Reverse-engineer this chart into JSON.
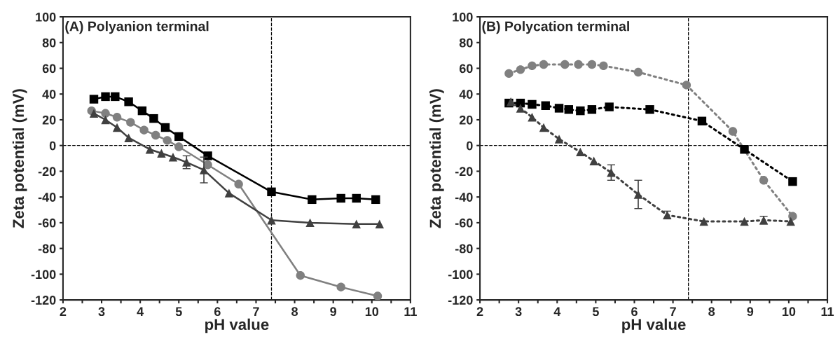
{
  "chart_data": [
    {
      "type": "line",
      "title": "(A) Polyanion terminal",
      "xlabel": "pH value",
      "ylabel": "Zeta potential (mV)",
      "xlim": [
        2,
        11
      ],
      "ylim": [
        -120,
        100
      ],
      "xticks": [
        2,
        {
          "value": 2.5,
          "label": null
        },
        3,
        {
          "value": 3.5,
          "label": null
        },
        4,
        {
          "value": 4.5,
          "label": null
        },
        5,
        {
          "value": 5.5,
          "label": null
        },
        6,
        {
          "value": 6.5,
          "label": null
        },
        7,
        {
          "value": 7.5,
          "label": null
        },
        8,
        {
          "value": 8.5,
          "label": null
        },
        9,
        {
          "value": 9.5,
          "label": null
        },
        10,
        {
          "value": 10.5,
          "label": null
        },
        11
      ],
      "yticks": [
        -120,
        -100,
        -80,
        -60,
        -40,
        -20,
        0,
        20,
        40,
        60,
        80,
        100
      ],
      "grid": false,
      "legend": false,
      "line_style": "solid",
      "ref_lines": [
        {
          "axis": "x",
          "value": 7.4,
          "line_style": "dashed",
          "color": "#000000"
        },
        {
          "axis": "y",
          "value": 0,
          "line_style": "dashed",
          "color": "#000000"
        }
      ],
      "series": [
        {
          "color": "#000000",
          "marker": "square",
          "x": [
            2.8,
            3.1,
            3.35,
            3.7,
            4.05,
            4.35,
            4.65,
            5.0,
            5.75,
            7.4,
            8.45,
            9.2,
            9.6,
            10.1
          ],
          "values": [
            36,
            38,
            38,
            34,
            27,
            21,
            14,
            7,
            -8,
            -36,
            -42,
            -41,
            -41,
            -42
          ]
        },
        {
          "color": "#808080",
          "marker": "circle",
          "x": [
            2.74,
            3.1,
            3.4,
            3.75,
            4.1,
            4.4,
            4.7,
            5.0,
            5.75,
            6.55,
            8.15,
            9.2,
            10.15
          ],
          "values": [
            27,
            25,
            22,
            18,
            12,
            8,
            4,
            -1,
            -15,
            -30,
            -101,
            -110,
            -117
          ]
        },
        {
          "color": "#404040",
          "marker": "triangle",
          "x": [
            2.8,
            3.1,
            3.4,
            3.7,
            4.25,
            4.55,
            4.85,
            5.2,
            5.65,
            6.3,
            7.4,
            8.4,
            9.6,
            10.2
          ],
          "values": [
            25,
            20,
            14,
            6,
            -3,
            -6,
            -9,
            -13,
            -19,
            -37,
            -58,
            -60,
            -61,
            -61
          ],
          "errors": [
            null,
            null,
            null,
            null,
            null,
            null,
            null,
            5,
            10,
            null,
            null,
            null,
            null,
            null
          ]
        }
      ]
    },
    {
      "type": "line",
      "title": "(B) Polycation terminal",
      "xlabel": "pH value",
      "ylabel": "Zeta potential (mV)",
      "xlim": [
        2,
        11
      ],
      "ylim": [
        -120,
        100
      ],
      "xticks": [
        2,
        {
          "value": 2.5,
          "label": null
        },
        3,
        {
          "value": 3.5,
          "label": null
        },
        4,
        {
          "value": 4.5,
          "label": null
        },
        5,
        {
          "value": 5.5,
          "label": null
        },
        6,
        {
          "value": 6.5,
          "label": null
        },
        7,
        {
          "value": 7.5,
          "label": null
        },
        8,
        {
          "value": 8.5,
          "label": null
        },
        9,
        {
          "value": 9.5,
          "label": null
        },
        10,
        {
          "value": 10.5,
          "label": null
        },
        11
      ],
      "yticks": [
        -120,
        -100,
        -80,
        -60,
        -40,
        -20,
        0,
        20,
        40,
        60,
        80,
        100
      ],
      "grid": false,
      "legend": false,
      "line_style": "dotted",
      "ref_lines": [
        {
          "axis": "x",
          "value": 7.4,
          "line_style": "dashed",
          "color": "#000000"
        },
        {
          "axis": "y",
          "value": 0,
          "line_style": "dashed",
          "color": "#000000"
        }
      ],
      "series": [
        {
          "color": "#808080",
          "marker": "circle",
          "x": [
            2.75,
            3.05,
            3.35,
            3.65,
            4.2,
            4.55,
            4.9,
            5.2,
            6.1,
            7.35,
            8.55,
            9.35,
            10.1
          ],
          "values": [
            56,
            59,
            62,
            63,
            63,
            63,
            63,
            62,
            57,
            47,
            11,
            -27,
            -55
          ]
        },
        {
          "color": "#000000",
          "marker": "square",
          "x": [
            2.75,
            3.05,
            3.35,
            3.7,
            4.05,
            4.3,
            4.6,
            4.9,
            5.35,
            6.4,
            7.75,
            8.85,
            10.1
          ],
          "values": [
            33,
            33,
            32,
            31,
            29,
            28,
            27,
            28,
            30,
            28,
            19,
            -3,
            -28
          ]
        },
        {
          "color": "#404040",
          "marker": "triangle",
          "x": [
            2.8,
            3.05,
            3.35,
            3.65,
            4.05,
            4.6,
            4.95,
            5.4,
            6.1,
            6.85,
            7.8,
            8.85,
            9.35,
            10.05
          ],
          "values": [
            34,
            29,
            22,
            14,
            5,
            -5,
            -12,
            -21,
            -38,
            -54,
            -59,
            -59,
            -58,
            -59
          ],
          "errors": [
            null,
            null,
            null,
            null,
            null,
            null,
            null,
            6,
            11,
            3,
            null,
            null,
            3,
            null
          ]
        }
      ]
    }
  ]
}
